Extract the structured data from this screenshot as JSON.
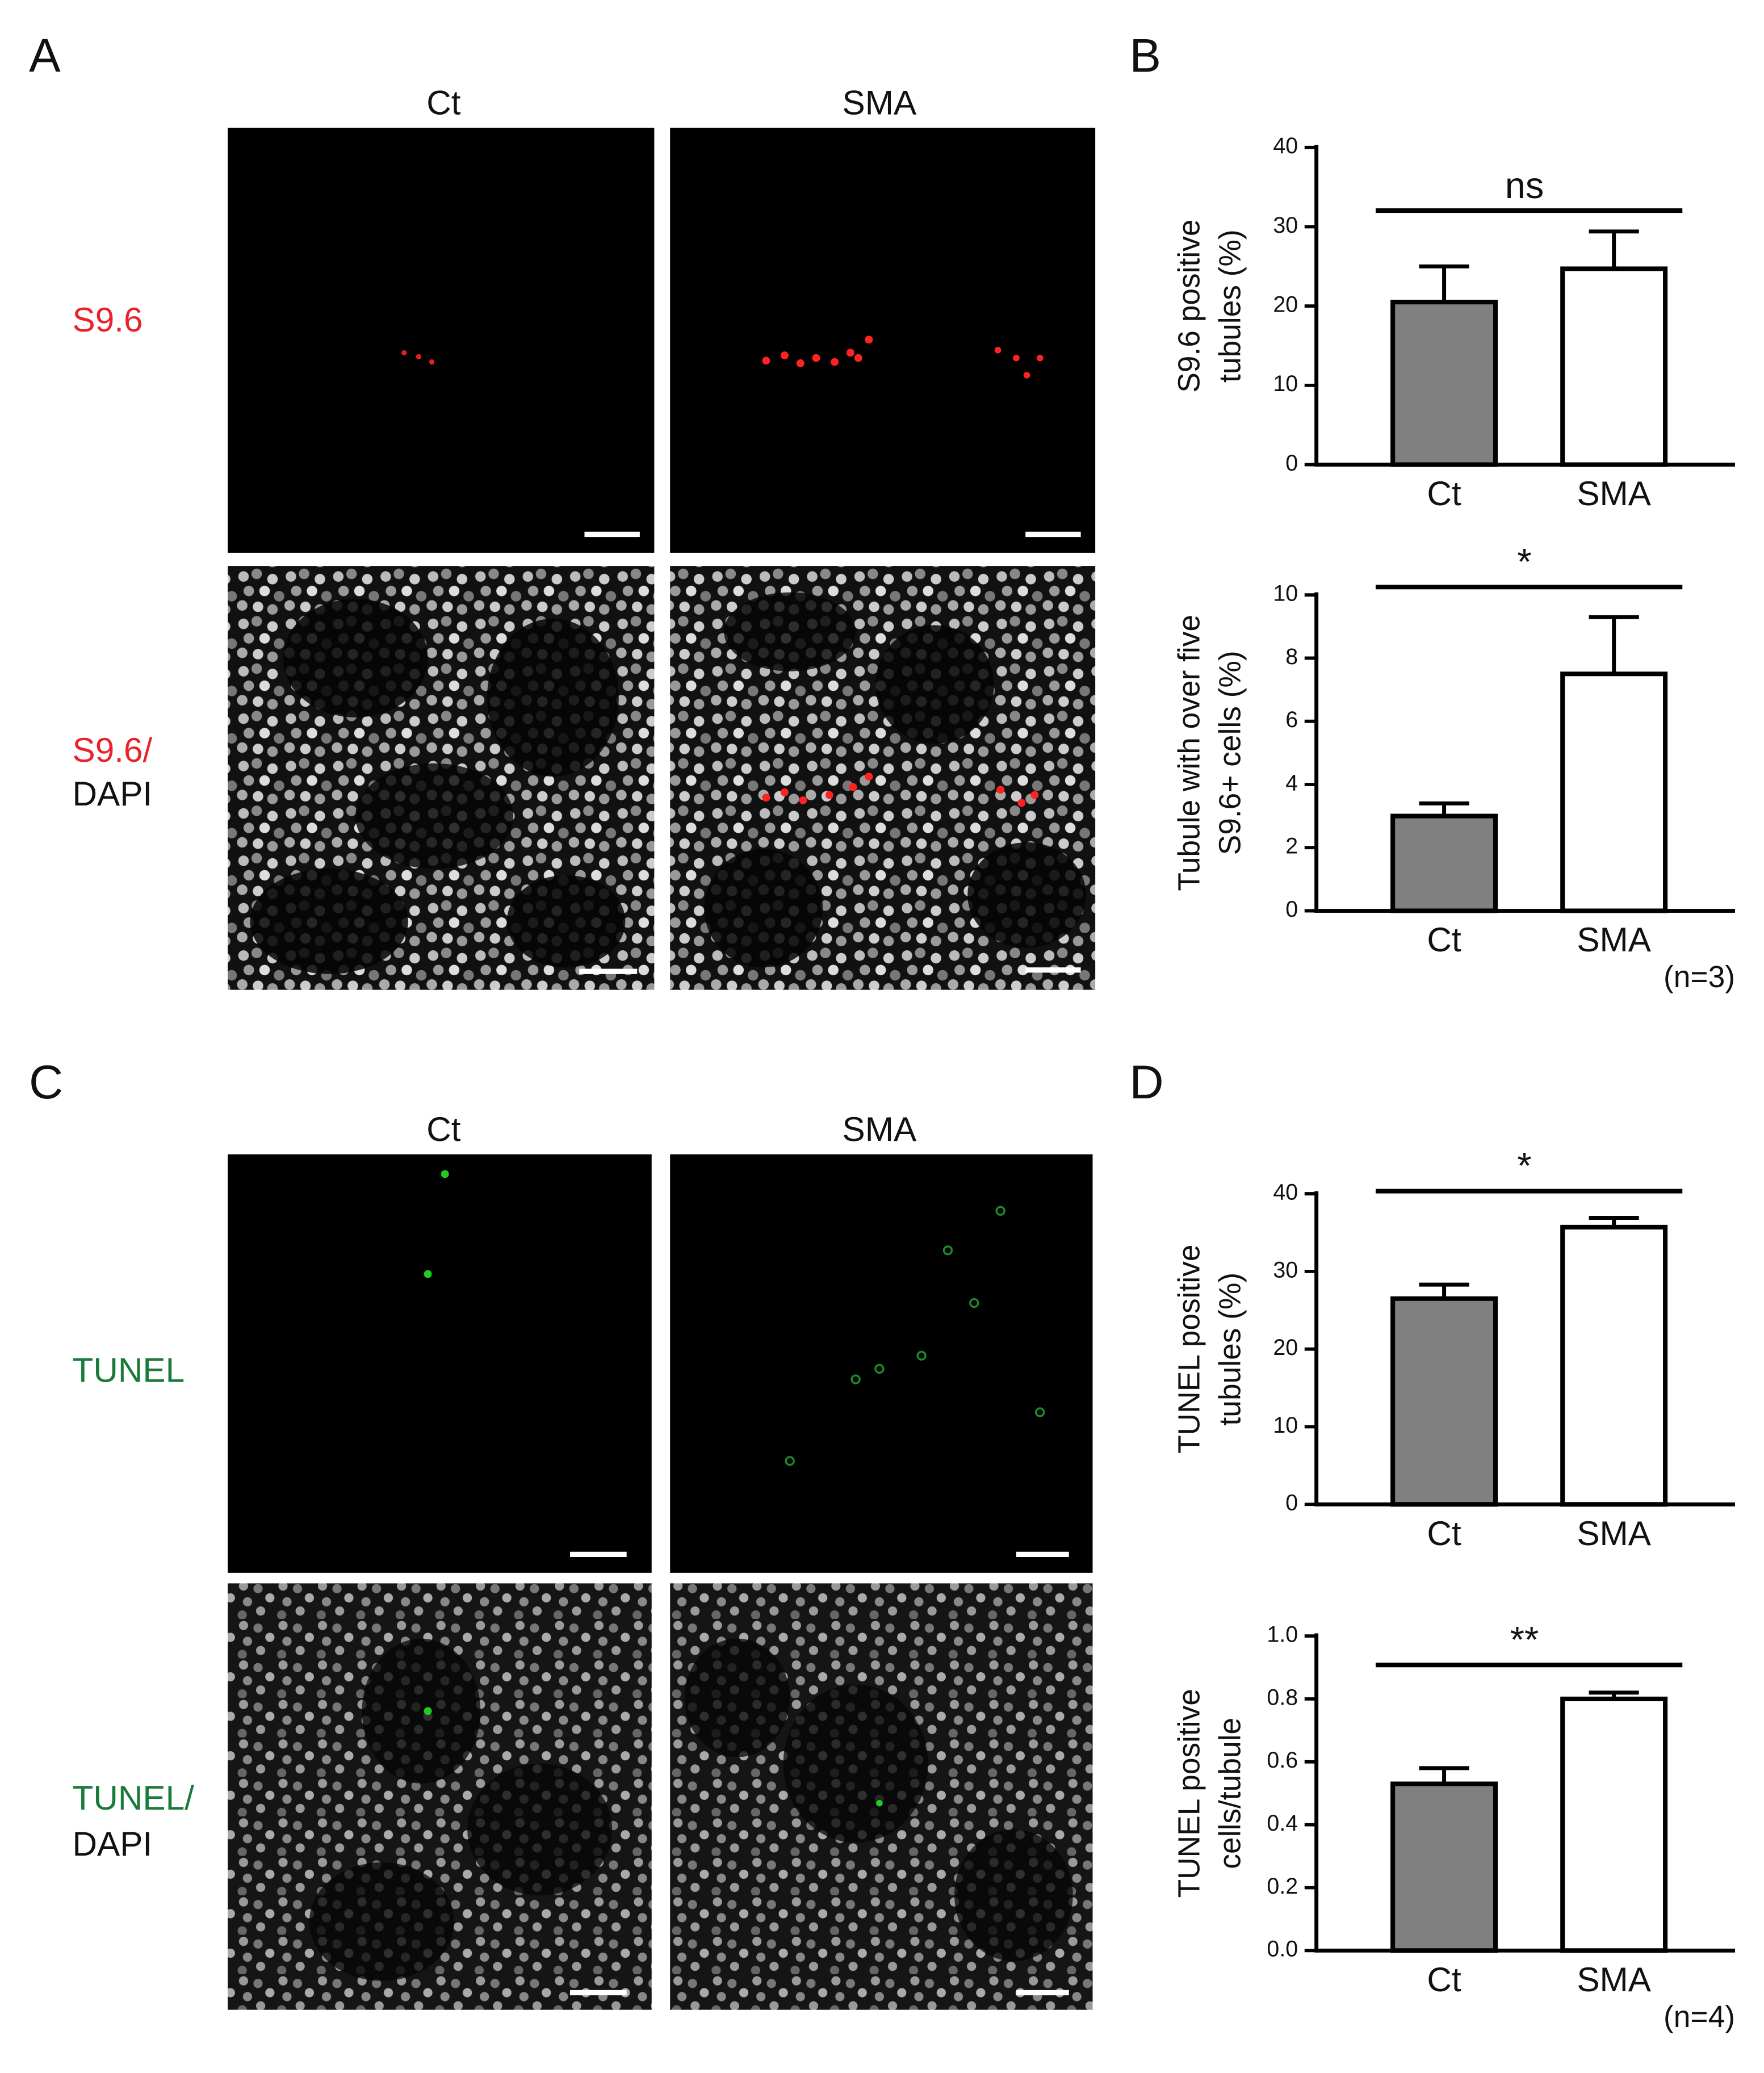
{
  "figure": {
    "panels": [
      "A",
      "B",
      "C",
      "D"
    ],
    "columns_top": [
      "Ct",
      "SMA"
    ],
    "columns_bottom": [
      "Ct",
      "SMA"
    ],
    "rows_top": [
      "S9.6",
      "S9.6/",
      "DAPI"
    ],
    "rows_bottom": [
      "TUNEL",
      "TUNEL/",
      "DAPI"
    ]
  },
  "chart_data": [
    {
      "type": "bar",
      "ylabel": [
        "S9.6 positive",
        "tubules (%)"
      ],
      "categories": [
        "Ct",
        "SMA"
      ],
      "values": [
        20.5,
        24.7
      ],
      "errors": [
        4.5,
        4.7
      ],
      "colors": [
        "#808080",
        "#ffffff"
      ],
      "ylim": [
        0,
        40
      ],
      "yticks": [
        0,
        10,
        20,
        30,
        40
      ],
      "annotation": "ns"
    },
    {
      "type": "bar",
      "ylabel": [
        "Tubule with over five",
        "S9.6+ cells (%)"
      ],
      "categories": [
        "Ct",
        "SMA"
      ],
      "values": [
        3.0,
        7.5
      ],
      "errors": [
        0.4,
        1.8
      ],
      "colors": [
        "#808080",
        "#ffffff"
      ],
      "ylim": [
        0,
        10
      ],
      "yticks": [
        0,
        2,
        4,
        6,
        8,
        10
      ],
      "annotation": "*",
      "note": "(n=3)"
    },
    {
      "type": "bar",
      "ylabel": [
        "TUNEL positive",
        "tubules (%)"
      ],
      "categories": [
        "Ct",
        "SMA"
      ],
      "values": [
        26.5,
        35.7
      ],
      "errors": [
        1.8,
        1.2
      ],
      "colors": [
        "#808080",
        "#ffffff"
      ],
      "ylim": [
        0,
        40
      ],
      "yticks": [
        0,
        10,
        20,
        30,
        40
      ],
      "annotation": "*"
    },
    {
      "type": "bar",
      "ylabel": [
        "TUNEL positive",
        "cells/tubule"
      ],
      "categories": [
        "Ct",
        "SMA"
      ],
      "values": [
        0.53,
        0.8
      ],
      "errors": [
        0.05,
        0.02
      ],
      "colors": [
        "#808080",
        "#ffffff"
      ],
      "ylim": [
        0,
        1
      ],
      "yticks": [
        {
          "value": 0,
          "label": "0.0"
        },
        0.2,
        0.4,
        0.6,
        0.8,
        {
          "value": 1,
          "label": "1.0"
        }
      ],
      "annotation": "**",
      "note": "(n=4)"
    }
  ]
}
